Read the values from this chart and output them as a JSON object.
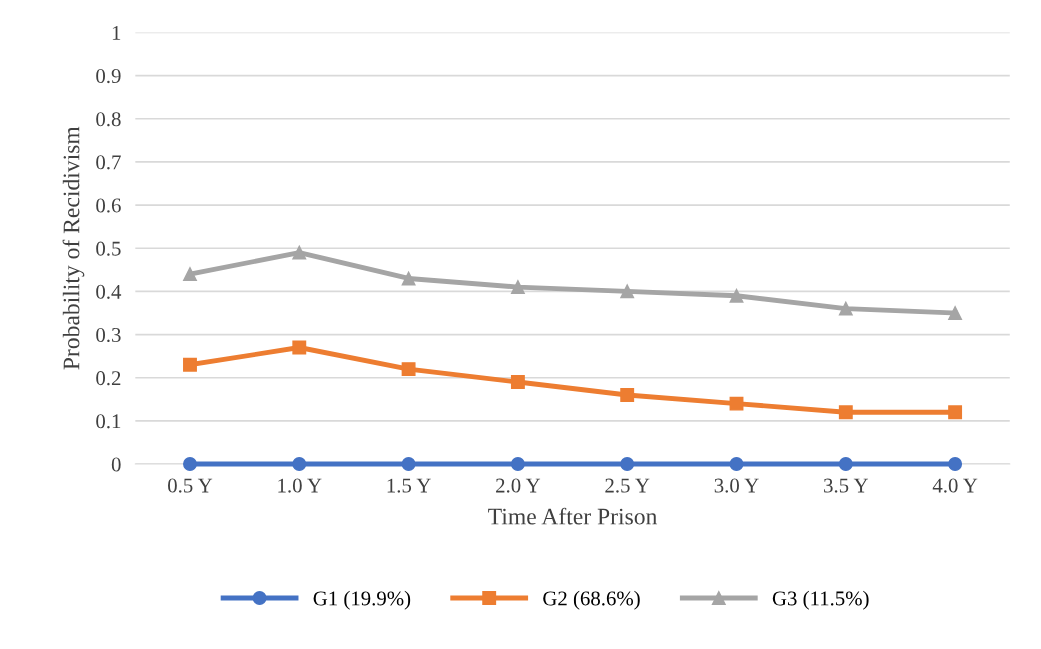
{
  "chart_data": {
    "type": "line",
    "xlabel": "Time After Prison",
    "ylabel": "Probability of Recidivism",
    "categories": [
      "0.5 Y",
      "1.0 Y",
      "1.5 Y",
      "2.0 Y",
      "2.5 Y",
      "3.0 Y",
      "3.5 Y",
      "4.0 Y"
    ],
    "series": [
      {
        "name": "G1 (19.9%)",
        "color": "#4472c4",
        "marker": "circle",
        "values": [
          0,
          0,
          0,
          0,
          0,
          0,
          0,
          0
        ]
      },
      {
        "name": "G2 (68.6%)",
        "color": "#ed7d31",
        "marker": "square",
        "values": [
          0.23,
          0.27,
          0.22,
          0.19,
          0.16,
          0.14,
          0.12,
          0.12
        ]
      },
      {
        "name": "G3 (11.5%)",
        "color": "#a5a5a5",
        "marker": "triangle",
        "values": [
          0.44,
          0.49,
          0.43,
          0.41,
          0.4,
          0.39,
          0.36,
          0.35
        ]
      }
    ],
    "ylim": [
      0,
      1
    ],
    "yticks": [
      0,
      0.1,
      0.2,
      0.3,
      0.4,
      0.5,
      0.6,
      0.7,
      0.8,
      0.9,
      1
    ],
    "grid": "y",
    "legend": "bottom",
    "line_style": "solid"
  }
}
